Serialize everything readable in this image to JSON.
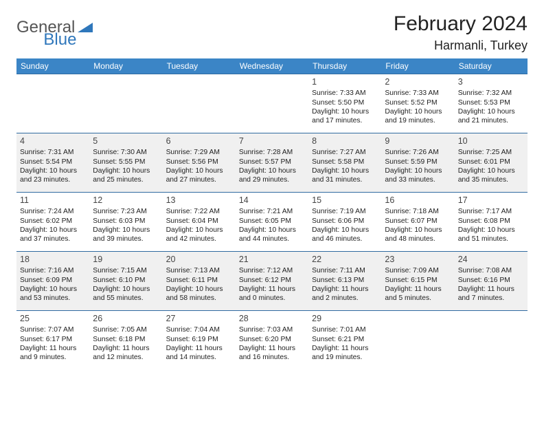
{
  "brand": {
    "part1": "General",
    "part2": "Blue",
    "accent_color": "#2f77bb"
  },
  "title": "February 2024",
  "location": "Harmanli, Turkey",
  "header_bg": "#3b85c6",
  "row_divider_color": "#2f6aa0",
  "alt_row_bg": "#f0f0f0",
  "weekdays": [
    "Sunday",
    "Monday",
    "Tuesday",
    "Wednesday",
    "Thursday",
    "Friday",
    "Saturday"
  ],
  "weeks": [
    {
      "alt": false,
      "days": [
        null,
        null,
        null,
        null,
        {
          "n": "1",
          "sunrise": "Sunrise: 7:33 AM",
          "sunset": "Sunset: 5:50 PM",
          "dl1": "Daylight: 10 hours",
          "dl2": "and 17 minutes."
        },
        {
          "n": "2",
          "sunrise": "Sunrise: 7:33 AM",
          "sunset": "Sunset: 5:52 PM",
          "dl1": "Daylight: 10 hours",
          "dl2": "and 19 minutes."
        },
        {
          "n": "3",
          "sunrise": "Sunrise: 7:32 AM",
          "sunset": "Sunset: 5:53 PM",
          "dl1": "Daylight: 10 hours",
          "dl2": "and 21 minutes."
        }
      ]
    },
    {
      "alt": true,
      "days": [
        {
          "n": "4",
          "sunrise": "Sunrise: 7:31 AM",
          "sunset": "Sunset: 5:54 PM",
          "dl1": "Daylight: 10 hours",
          "dl2": "and 23 minutes."
        },
        {
          "n": "5",
          "sunrise": "Sunrise: 7:30 AM",
          "sunset": "Sunset: 5:55 PM",
          "dl1": "Daylight: 10 hours",
          "dl2": "and 25 minutes."
        },
        {
          "n": "6",
          "sunrise": "Sunrise: 7:29 AM",
          "sunset": "Sunset: 5:56 PM",
          "dl1": "Daylight: 10 hours",
          "dl2": "and 27 minutes."
        },
        {
          "n": "7",
          "sunrise": "Sunrise: 7:28 AM",
          "sunset": "Sunset: 5:57 PM",
          "dl1": "Daylight: 10 hours",
          "dl2": "and 29 minutes."
        },
        {
          "n": "8",
          "sunrise": "Sunrise: 7:27 AM",
          "sunset": "Sunset: 5:58 PM",
          "dl1": "Daylight: 10 hours",
          "dl2": "and 31 minutes."
        },
        {
          "n": "9",
          "sunrise": "Sunrise: 7:26 AM",
          "sunset": "Sunset: 5:59 PM",
          "dl1": "Daylight: 10 hours",
          "dl2": "and 33 minutes."
        },
        {
          "n": "10",
          "sunrise": "Sunrise: 7:25 AM",
          "sunset": "Sunset: 6:01 PM",
          "dl1": "Daylight: 10 hours",
          "dl2": "and 35 minutes."
        }
      ]
    },
    {
      "alt": false,
      "days": [
        {
          "n": "11",
          "sunrise": "Sunrise: 7:24 AM",
          "sunset": "Sunset: 6:02 PM",
          "dl1": "Daylight: 10 hours",
          "dl2": "and 37 minutes."
        },
        {
          "n": "12",
          "sunrise": "Sunrise: 7:23 AM",
          "sunset": "Sunset: 6:03 PM",
          "dl1": "Daylight: 10 hours",
          "dl2": "and 39 minutes."
        },
        {
          "n": "13",
          "sunrise": "Sunrise: 7:22 AM",
          "sunset": "Sunset: 6:04 PM",
          "dl1": "Daylight: 10 hours",
          "dl2": "and 42 minutes."
        },
        {
          "n": "14",
          "sunrise": "Sunrise: 7:21 AM",
          "sunset": "Sunset: 6:05 PM",
          "dl1": "Daylight: 10 hours",
          "dl2": "and 44 minutes."
        },
        {
          "n": "15",
          "sunrise": "Sunrise: 7:19 AM",
          "sunset": "Sunset: 6:06 PM",
          "dl1": "Daylight: 10 hours",
          "dl2": "and 46 minutes."
        },
        {
          "n": "16",
          "sunrise": "Sunrise: 7:18 AM",
          "sunset": "Sunset: 6:07 PM",
          "dl1": "Daylight: 10 hours",
          "dl2": "and 48 minutes."
        },
        {
          "n": "17",
          "sunrise": "Sunrise: 7:17 AM",
          "sunset": "Sunset: 6:08 PM",
          "dl1": "Daylight: 10 hours",
          "dl2": "and 51 minutes."
        }
      ]
    },
    {
      "alt": true,
      "days": [
        {
          "n": "18",
          "sunrise": "Sunrise: 7:16 AM",
          "sunset": "Sunset: 6:09 PM",
          "dl1": "Daylight: 10 hours",
          "dl2": "and 53 minutes."
        },
        {
          "n": "19",
          "sunrise": "Sunrise: 7:15 AM",
          "sunset": "Sunset: 6:10 PM",
          "dl1": "Daylight: 10 hours",
          "dl2": "and 55 minutes."
        },
        {
          "n": "20",
          "sunrise": "Sunrise: 7:13 AM",
          "sunset": "Sunset: 6:11 PM",
          "dl1": "Daylight: 10 hours",
          "dl2": "and 58 minutes."
        },
        {
          "n": "21",
          "sunrise": "Sunrise: 7:12 AM",
          "sunset": "Sunset: 6:12 PM",
          "dl1": "Daylight: 11 hours",
          "dl2": "and 0 minutes."
        },
        {
          "n": "22",
          "sunrise": "Sunrise: 7:11 AM",
          "sunset": "Sunset: 6:13 PM",
          "dl1": "Daylight: 11 hours",
          "dl2": "and 2 minutes."
        },
        {
          "n": "23",
          "sunrise": "Sunrise: 7:09 AM",
          "sunset": "Sunset: 6:15 PM",
          "dl1": "Daylight: 11 hours",
          "dl2": "and 5 minutes."
        },
        {
          "n": "24",
          "sunrise": "Sunrise: 7:08 AM",
          "sunset": "Sunset: 6:16 PM",
          "dl1": "Daylight: 11 hours",
          "dl2": "and 7 minutes."
        }
      ]
    },
    {
      "alt": false,
      "days": [
        {
          "n": "25",
          "sunrise": "Sunrise: 7:07 AM",
          "sunset": "Sunset: 6:17 PM",
          "dl1": "Daylight: 11 hours",
          "dl2": "and 9 minutes."
        },
        {
          "n": "26",
          "sunrise": "Sunrise: 7:05 AM",
          "sunset": "Sunset: 6:18 PM",
          "dl1": "Daylight: 11 hours",
          "dl2": "and 12 minutes."
        },
        {
          "n": "27",
          "sunrise": "Sunrise: 7:04 AM",
          "sunset": "Sunset: 6:19 PM",
          "dl1": "Daylight: 11 hours",
          "dl2": "and 14 minutes."
        },
        {
          "n": "28",
          "sunrise": "Sunrise: 7:03 AM",
          "sunset": "Sunset: 6:20 PM",
          "dl1": "Daylight: 11 hours",
          "dl2": "and 16 minutes."
        },
        {
          "n": "29",
          "sunrise": "Sunrise: 7:01 AM",
          "sunset": "Sunset: 6:21 PM",
          "dl1": "Daylight: 11 hours",
          "dl2": "and 19 minutes."
        },
        null,
        null
      ]
    }
  ]
}
